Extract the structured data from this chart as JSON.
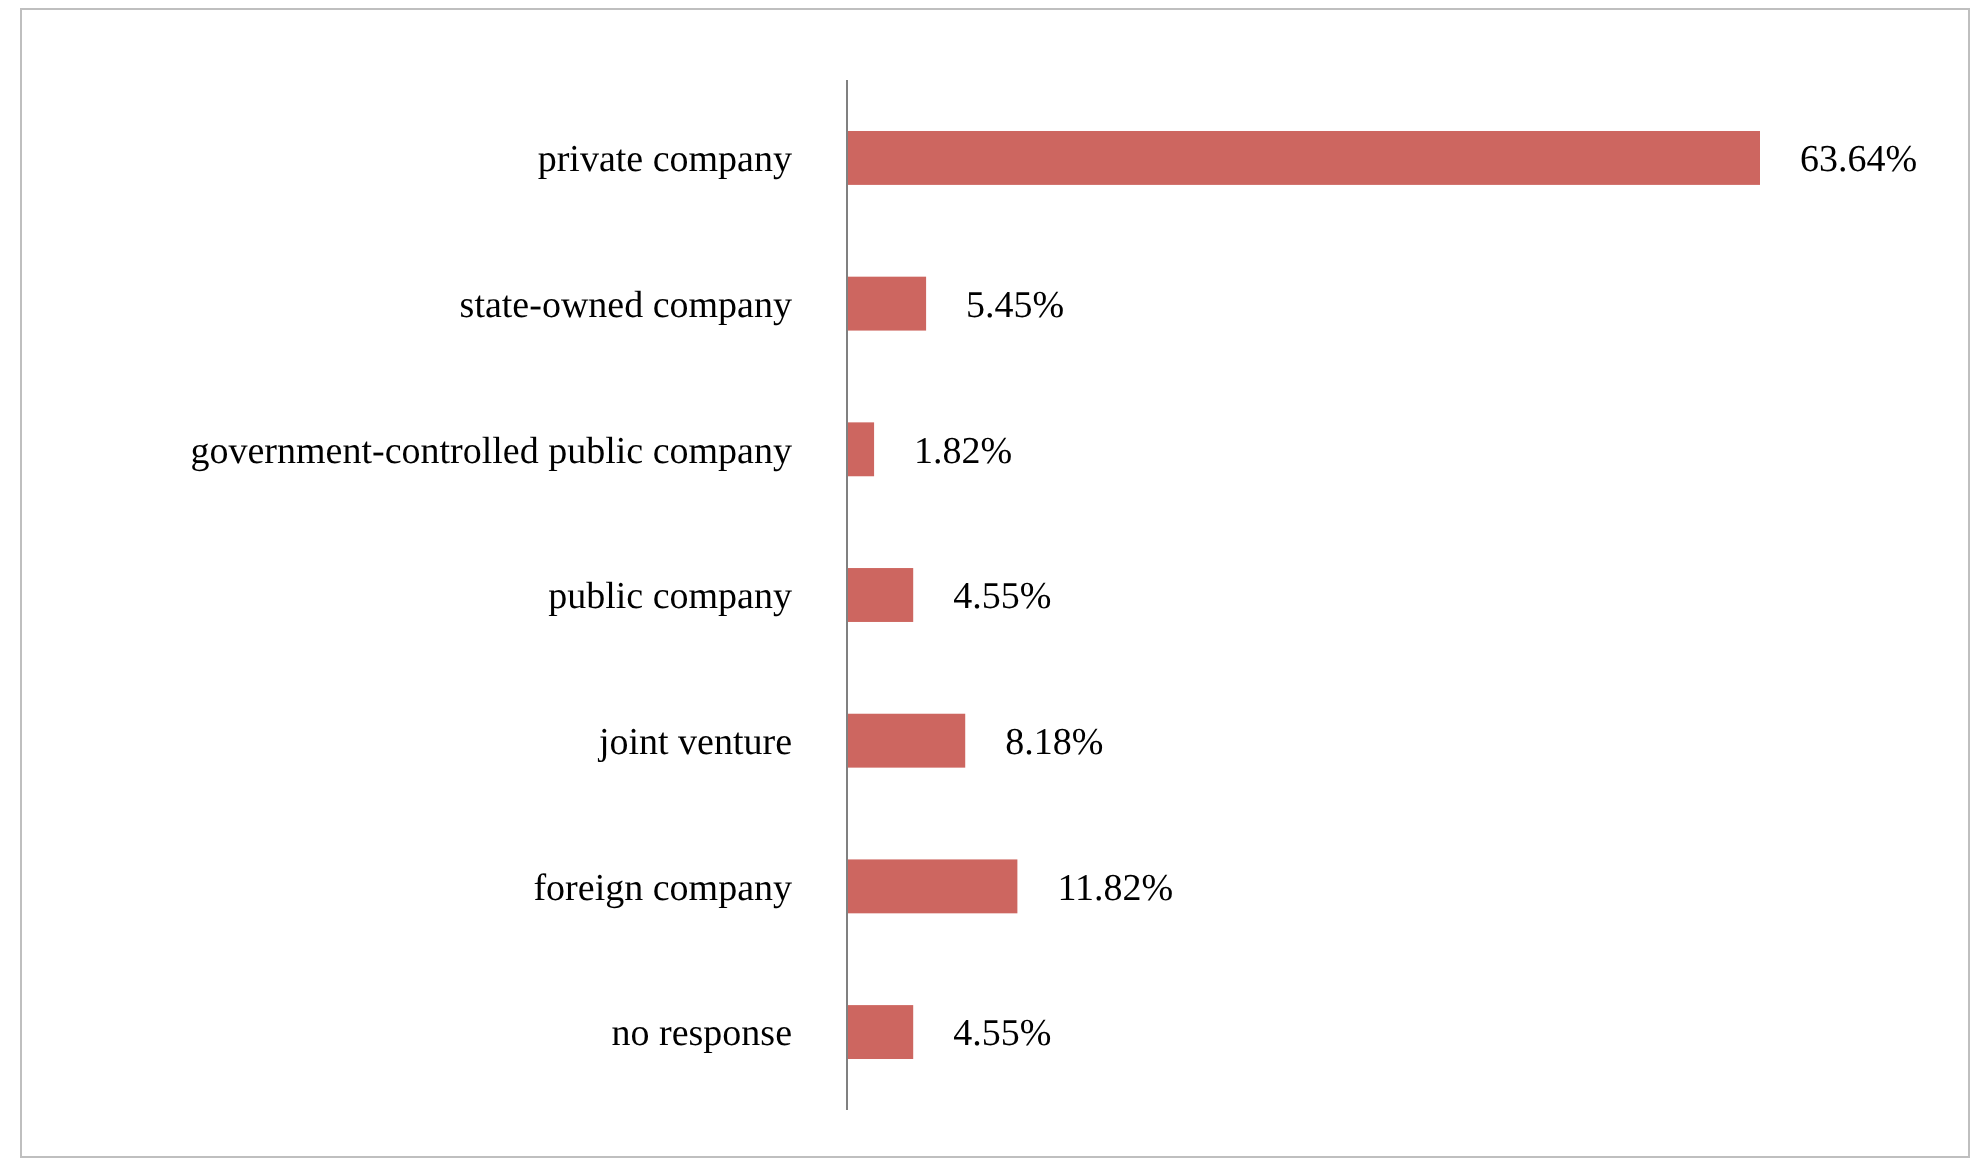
{
  "chart_data": {
    "type": "bar",
    "orientation": "horizontal",
    "categories": [
      "private company",
      "state-owned company",
      "government-controlled public company",
      "public company",
      "joint venture",
      "foreign company",
      "no response"
    ],
    "values": [
      63.64,
      5.45,
      1.82,
      4.55,
      8.18,
      11.82,
      4.55
    ],
    "value_labels": [
      "63.64%",
      "5.45%",
      "1.82%",
      "4.55%",
      "8.18%",
      "11.82%",
      "4.55%"
    ],
    "color": "#cd6660",
    "xlim": [
      0,
      63.64
    ],
    "tick_labels": "y"
  }
}
